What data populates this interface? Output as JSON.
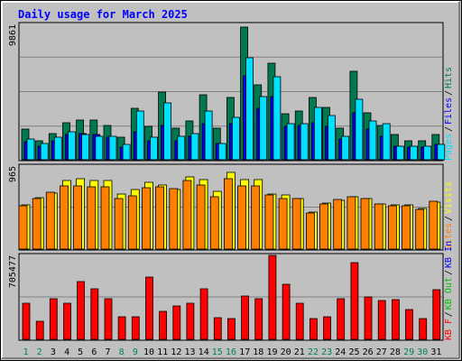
{
  "chart_data": {
    "type": "bar",
    "title": "Daily usage for March 2025",
    "categories": [
      "1",
      "2",
      "3",
      "4",
      "5",
      "6",
      "7",
      "8",
      "9",
      "10",
      "11",
      "12",
      "13",
      "14",
      "15",
      "16",
      "17",
      "18",
      "19",
      "20",
      "21",
      "22",
      "23",
      "24",
      "25",
      "26",
      "27",
      "28",
      "29",
      "30",
      "31"
    ],
    "weekend_days": [
      "1",
      "2",
      "8",
      "9",
      "15",
      "16",
      "22",
      "23",
      "29",
      "30"
    ],
    "panels": [
      {
        "name": "hits-files-pages",
        "ymax_label": "9861",
        "ymax": 9861,
        "series": [
          {
            "name": "Hits",
            "color": "#007850",
            "values": [
              2200,
              1400,
              1900,
              2700,
              2900,
              2900,
              2500,
              1600,
              3700,
              2400,
              4900,
              2300,
              2800,
              4700,
              2300,
              4500,
              9600,
              5400,
              7000,
              3300,
              3500,
              4500,
              3800,
              2300,
              6400,
              3400,
              2500,
              1800,
              1400,
              1400,
              1800
            ]
          },
          {
            "name": "Files",
            "color": "#0000ff",
            "values": [
              1300,
              1000,
              1400,
              1800,
              1900,
              1800,
              1600,
              900,
              2000,
              1400,
              2500,
              1400,
              1700,
              2600,
              1200,
              2600,
              6100,
              3700,
              4600,
              2400,
              2500,
              2700,
              2400,
              1500,
              3400,
              2200,
              1700,
              1000,
              900,
              900,
              1100
            ]
          },
          {
            "name": "Pages",
            "color": "#00e0ff",
            "values": [
              1500,
              1200,
              1600,
              2000,
              1800,
              1700,
              1700,
              1100,
              3500,
              1600,
              4100,
              1700,
              1900,
              3500,
              1200,
              3100,
              7400,
              4600,
              6000,
              2600,
              2600,
              3800,
              3200,
              1700,
              4400,
              2800,
              2600,
              1000,
              1000,
              1000,
              1100
            ]
          }
        ]
      },
      {
        "name": "visits-sites",
        "ymax_label": "965",
        "ymax": 965,
        "series": [
          {
            "name": "Visits",
            "color": "#ffff00",
            "values": [
              510,
              590,
              640,
              790,
              810,
              790,
              790,
              630,
              690,
              770,
              740,
              690,
              830,
              800,
              660,
              880,
              800,
              800,
              630,
              620,
              580,
              430,
              530,
              560,
              600,
              580,
              520,
              510,
              510,
              470,
              540
            ]
          },
          {
            "name": "Sites",
            "color": "#ff8000",
            "values": [
              500,
              580,
              650,
              730,
              730,
              720,
              720,
              580,
              610,
              710,
              720,
              700,
              790,
              740,
              600,
              810,
              730,
              730,
              620,
              580,
              580,
              420,
              520,
              570,
              600,
              580,
              520,
              500,
              500,
              460,
              550
            ]
          }
        ]
      },
      {
        "name": "kbytes",
        "ymax_label": "705477",
        "ymax": 705477,
        "series": [
          {
            "name": "KB F",
            "color": "#ff0000",
            "values": [
              300000,
              150000,
              340000,
              300000,
              480000,
              420000,
              340000,
              190000,
              190000,
              520000,
              230000,
              280000,
              300000,
              420000,
              180000,
              170000,
              360000,
              340000,
              700000,
              460000,
              300000,
              170000,
              190000,
              340000,
              640000,
              350000,
              320000,
              330000,
              250000,
              170000,
              410000
            ]
          }
        ],
        "legend_extra": [
          {
            "name": "KB In",
            "color": "#0000ff"
          },
          {
            "name": "KB Out",
            "color": "#00c000"
          }
        ]
      }
    ],
    "grid": true,
    "legend_position": "right"
  }
}
